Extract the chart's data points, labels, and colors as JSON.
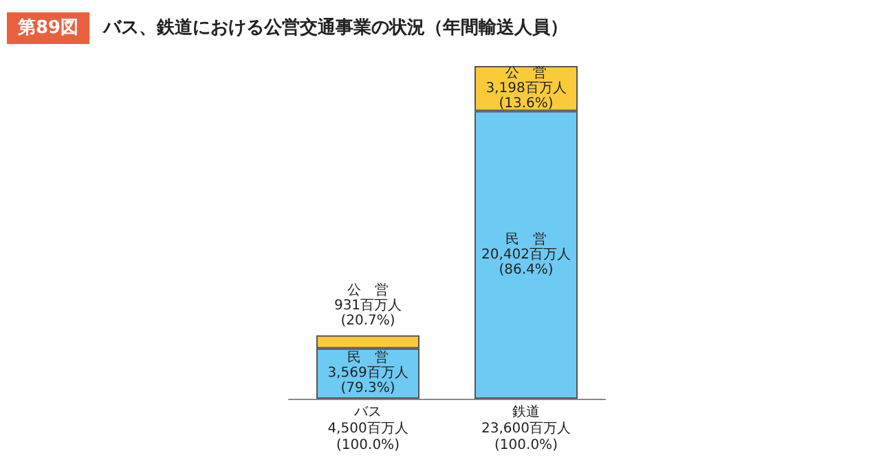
{
  "chart_data": {
    "type": "bar",
    "stacked": true,
    "subtitle": "第89図",
    "title": "バス、鉄道における公営交通事業の状況（年間輸送人員）",
    "categories": [
      "バス",
      "鉄道"
    ],
    "totals": [
      "4,500百万人\n(100.0%)",
      "23,600百万人\n(100.0%)"
    ],
    "series": [
      {
        "name": "民　営",
        "color": "#6dcaf2",
        "values": [
          3569,
          20402
        ],
        "value_labels": [
          "3,569百万人\n(79.3%)",
          "20,402百万人\n(86.4%)"
        ]
      },
      {
        "name": "公　営",
        "color": "#f9cb3a",
        "values": [
          931,
          3198
        ],
        "value_labels": [
          "931百万人\n(20.7%)",
          "3,198百万人\n(13.6%)"
        ]
      }
    ]
  }
}
